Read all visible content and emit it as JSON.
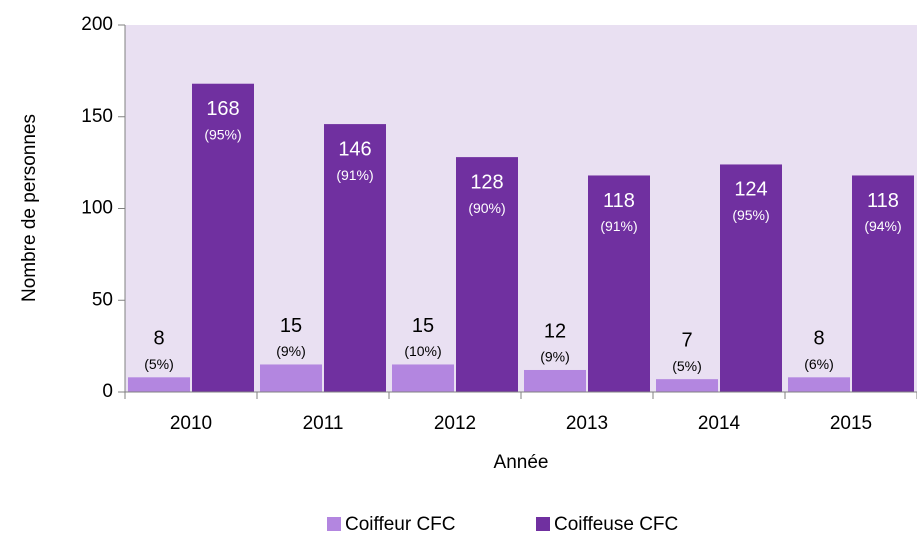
{
  "chart_data": {
    "type": "bar",
    "x_label": "Année",
    "y_label": "Nombre de personnes",
    "categories": [
      "2010",
      "2011",
      "2012",
      "2013",
      "2014",
      "2015"
    ],
    "series": [
      {
        "name": "Coiffeur CFC",
        "color": "#b386e0",
        "values": [
          8,
          15,
          15,
          12,
          7,
          8
        ],
        "share_labels": [
          "(5%)",
          "(9%)",
          "(10%)",
          "(9%)",
          "(5%)",
          "(6%)"
        ]
      },
      {
        "name": "Coiffeuse CFC",
        "color": "#7030a0",
        "values": [
          168,
          146,
          128,
          118,
          124,
          118
        ],
        "share_labels": [
          "(95%)",
          "(91%)",
          "(90%)",
          "(91%)",
          "(95%)",
          "(94%)"
        ]
      }
    ],
    "ylim": [
      0,
      200
    ],
    "yticks": [
      0,
      50,
      100,
      150,
      200
    ],
    "plot_background": "#e9e0f2"
  }
}
